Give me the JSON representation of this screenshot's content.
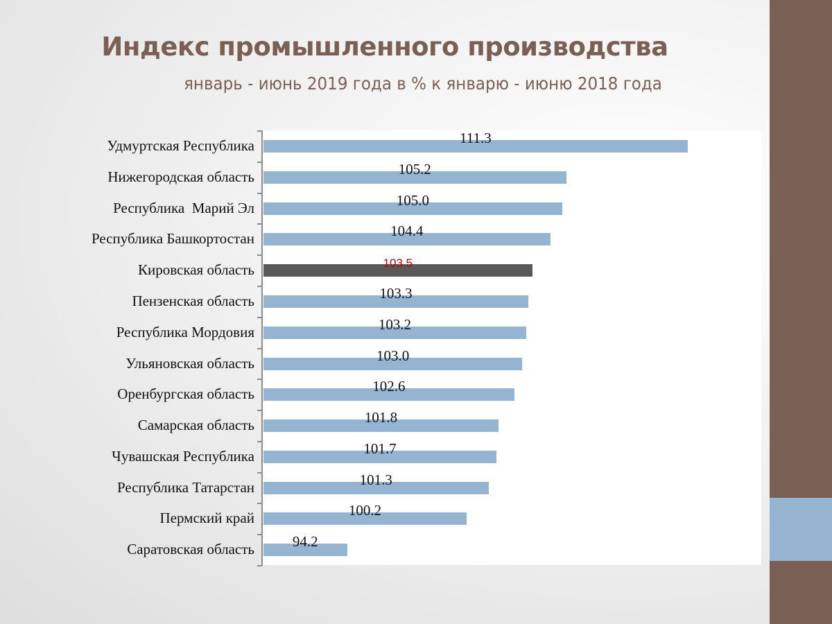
{
  "slide": {
    "title": "Индекс промышленного производства",
    "subtitle": "январь - июнь 2019 года в % к январю - июню 2018 года",
    "colors": {
      "title": "#7a5f55",
      "stripe": "#7a5f55",
      "stripe_accent": "#94b4d2",
      "bar": "#94b4d2",
      "highlight_bar": "#595959",
      "highlight_label": "#c00000"
    }
  },
  "chart_data": {
    "type": "bar",
    "orientation": "horizontal",
    "title": "Индекс промышленного производства",
    "subtitle": "январь - июнь 2019 года в % к январю - июню 2018 года",
    "xlabel": "",
    "ylabel": "",
    "xlim": [
      90,
      115
    ],
    "grid": false,
    "legend": null,
    "data_labels": true,
    "highlighted_category": "Кировская область",
    "categories": [
      "Удмуртская Республика",
      "Нижегородская область",
      "Республика  Марий Эл",
      "Республика Башкортостан",
      "Кировская область",
      "Пензенская область",
      "Республика Мордовия",
      "Ульяновская область",
      "Оренбургская область",
      "Самарская область",
      "Чувашская Республика",
      "Республика Татарстан",
      "Пермский край",
      "Саратовская область"
    ],
    "values": [
      111.3,
      105.2,
      105.0,
      104.4,
      103.5,
      103.3,
      103.2,
      103.0,
      102.6,
      101.8,
      101.7,
      101.3,
      100.2,
      94.2
    ],
    "value_labels": [
      "111.3",
      "105.2",
      "105.0",
      "104.4",
      "103.5",
      "103.3",
      "103.2",
      "103.0",
      "102.6",
      "101.8",
      "101.7",
      "101.3",
      "100.2",
      "94.2"
    ]
  }
}
